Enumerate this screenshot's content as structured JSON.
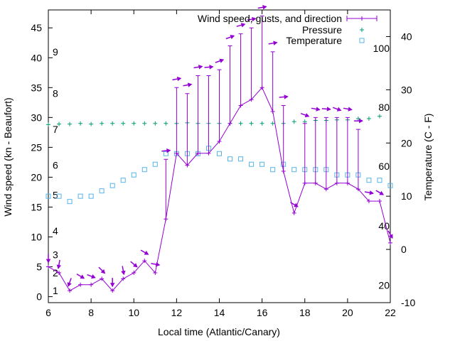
{
  "chart_data": {
    "type": "line",
    "title": "",
    "xlabel": "Local time (Atlantic/Canary)",
    "ylabel": "Wind speed (kn - Beaufort)",
    "y2label": "Temperature (C - F)",
    "xlim": [
      6,
      22
    ],
    "ylim": [
      -1,
      48
    ],
    "y2lim": [
      -10,
      45
    ],
    "x_ticks": [
      6,
      8,
      10,
      12,
      14,
      16,
      18,
      20,
      22
    ],
    "y_ticks": [
      0,
      5,
      10,
      15,
      20,
      25,
      30,
      35,
      40,
      45
    ],
    "y2_ticks": [
      -10,
      0,
      10,
      20,
      30,
      40
    ],
    "beaufort_labels": [
      {
        "label": "1",
        "kn": 1
      },
      {
        "label": "2",
        "kn": 4
      },
      {
        "label": "3",
        "kn": 7
      },
      {
        "label": "4",
        "kn": 11
      },
      {
        "label": "5",
        "kn": 17
      },
      {
        "label": "6",
        "kn": 22
      },
      {
        "label": "7",
        "kn": 28
      },
      {
        "label": "8",
        "kn": 34
      },
      {
        "label": "9",
        "kn": 41
      }
    ],
    "fahrenheit_labels": [
      {
        "label": "20",
        "c": -6.7
      },
      {
        "label": "40",
        "c": 4.4
      },
      {
        "label": "60",
        "c": 15.6
      },
      {
        "label": "80",
        "c": 26.7
      },
      {
        "label": "100",
        "c": 37.8
      }
    ],
    "legend_position": "top-right",
    "colors": {
      "wind": "#9400d3",
      "pressure": "#009e73",
      "temperature": "#56b4e9"
    },
    "series": [
      {
        "name": "Wind speed, gusts, and direction",
        "x": [
          6,
          6.5,
          7,
          7.5,
          8,
          8.5,
          9,
          9.5,
          10,
          10.5,
          11,
          11.5,
          12,
          12.5,
          13,
          13.5,
          14,
          14.5,
          15,
          15.5,
          16,
          16.5,
          17,
          17.5,
          18,
          18.5,
          19,
          19.5,
          20,
          20.5,
          21,
          21.5,
          22
        ],
        "y": [
          5,
          4,
          1,
          2,
          2,
          3,
          1,
          3,
          4,
          6,
          4,
          13,
          24,
          22,
          24,
          24,
          26,
          29,
          32,
          33,
          35,
          31,
          21,
          14,
          19,
          19,
          18,
          19,
          19,
          18,
          16,
          16,
          9
        ],
        "gust": [
          5,
          4,
          1,
          2,
          2,
          3,
          1,
          3,
          4,
          6,
          4,
          23,
          35,
          34,
          37,
          37,
          38,
          42,
          44,
          45,
          47,
          41,
          32,
          14,
          29,
          30,
          30,
          30,
          30,
          28,
          16,
          16,
          9
        ],
        "direction_deg": [
          180,
          190,
          200,
          120,
          110,
          135,
          180,
          170,
          130,
          120,
          100,
          85,
          80,
          80,
          80,
          85,
          70,
          70,
          75,
          80,
          80,
          80,
          85,
          120,
          110,
          100,
          95,
          110,
          100,
          90,
          100,
          120,
          150
        ]
      },
      {
        "name": "Pressure",
        "x": [
          6,
          6.5,
          7,
          7.5,
          8,
          8.5,
          9,
          9.5,
          10,
          10.5,
          11,
          11.5,
          12,
          12.5,
          13,
          13.5,
          14,
          14.5,
          15,
          15.5,
          16,
          16.5,
          17,
          17.5,
          18,
          18.5,
          19,
          19.5,
          20,
          20.5,
          21,
          21.5
        ],
        "y": [
          28.8,
          28.9,
          28.9,
          29,
          28.9,
          29,
          29,
          29,
          29,
          29,
          29,
          29,
          29,
          29.1,
          29,
          29,
          29,
          29,
          29,
          29,
          29,
          29,
          29,
          29.3,
          29.3,
          29.5,
          29.5,
          29.6,
          29.6,
          29.8,
          29.8,
          30.2
        ]
      },
      {
        "name": "Temperature",
        "x": [
          6,
          6.5,
          7,
          7.5,
          8,
          8.5,
          9,
          9.5,
          10,
          10.5,
          11,
          11.5,
          12,
          12.5,
          13,
          13.5,
          14,
          14.5,
          15,
          15.5,
          16,
          16.5,
          17,
          17.5,
          18,
          18.5,
          19,
          19.5,
          20,
          20.5,
          21,
          21.5,
          22
        ],
        "y": [
          10,
          10,
          9,
          10,
          10,
          11,
          12,
          13,
          14,
          15,
          16,
          18,
          18,
          18,
          18,
          19,
          18,
          17,
          17,
          16,
          16,
          15,
          16,
          15,
          15,
          15,
          15,
          14,
          14,
          14,
          13,
          13,
          12
        ]
      }
    ]
  }
}
